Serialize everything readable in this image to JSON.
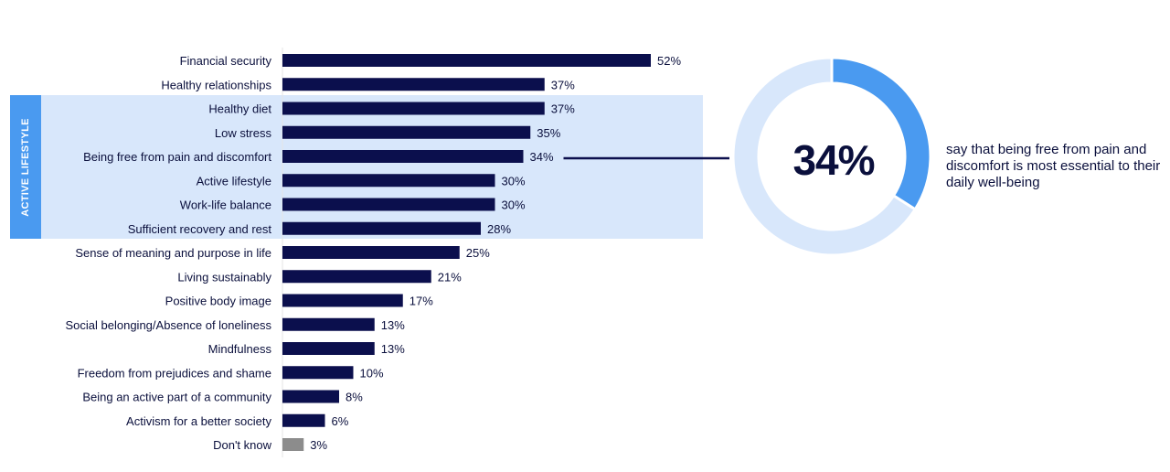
{
  "chart_data": {
    "type": "bar",
    "orientation": "horizontal",
    "categories": [
      "Financial security",
      "Healthy relationships",
      "Healthy diet",
      "Low stress",
      "Being free from pain and discomfort",
      "Active lifestyle",
      "Work-life balance",
      "Sufficient recovery and rest",
      "Sense of meaning and purpose in life",
      "Living sustainably",
      "Positive body image",
      "Social belonging/Absence of loneliness",
      "Mindfulness",
      "Freedom from prejudices and shame",
      "Being an active part of a community",
      "Activism for a better society",
      "Don't know"
    ],
    "values": [
      52,
      37,
      37,
      35,
      34,
      30,
      30,
      28,
      25,
      21,
      17,
      13,
      13,
      10,
      8,
      6,
      3
    ],
    "value_labels": [
      "52%",
      "37%",
      "37%",
      "35%",
      "34%",
      "30%",
      "30%",
      "28%",
      "25%",
      "21%",
      "17%",
      "13%",
      "13%",
      "10%",
      "8%",
      "6%",
      "3%"
    ],
    "unit": "%",
    "xlim": [
      0,
      100
    ],
    "highlight_group": {
      "label": "ACTIVE LIFESTYLE",
      "categories": [
        "Healthy diet",
        "Low stress",
        "Being free from pain and discomfort",
        "Active lifestyle",
        "Work-life balance",
        "Sufficient recovery and rest"
      ]
    },
    "callout": {
      "category": "Being free from pain and discomfort",
      "value": 34,
      "value_label": "34%",
      "text": "say that being free from pain and discomfort is most essential to their daily well-being"
    }
  },
  "colors": {
    "bar": "#0b0f4d",
    "dont_know_bar": "#8c8c8c",
    "highlight_band": "#d8e7fb",
    "highlight_tab": "#4a9af0",
    "donut_filled": "#4a9af0",
    "donut_remaining": "#d8e7fb",
    "text": "#0a0f3c"
  }
}
